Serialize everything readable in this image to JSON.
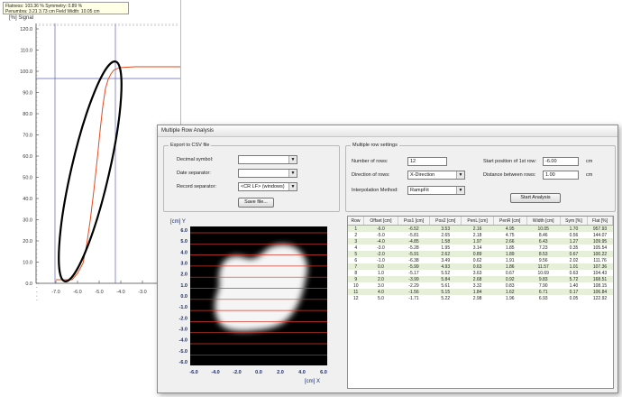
{
  "background_window": {
    "tooltip_line1": "Flatness: 103.36 %  Symmetry: 0.89 %",
    "tooltip_line2": "Penumbra: 3.21  3.73 cm  Field Width: 10.05 cm",
    "y_label": "[%] Signal",
    "y_ticks": [
      "120.0",
      "110.0",
      "100.0",
      "90.0",
      "80.0",
      "70.0",
      "60.0",
      "50.0",
      "40.0",
      "30.0",
      "20.0",
      "10.0",
      "0.0"
    ],
    "x_ticks": [
      "-7.0",
      "-6.0",
      "-5.0",
      "-4.0",
      "-3.0",
      "-2."
    ],
    "colors": {
      "curve": "#e34a1e",
      "highlight": "#000000",
      "grid": "#5c63b8"
    }
  },
  "dialog": {
    "title": "Multiple Row Analysis",
    "export": {
      "group_title": "Export to CSV file",
      "decimal_label": "Decimal symbol:",
      "decimal_value": "",
      "date_label": "Date separator:",
      "date_value": "",
      "record_label": "Record separator:",
      "record_value": "<CR LF> (windows)",
      "save_button": "Save file..."
    },
    "settings": {
      "group_title": "Multiple row settings",
      "rows_label": "Number of rows:",
      "rows_value": "12",
      "direction_label": "Direction of rows:",
      "direction_value": "X-Direction",
      "interp_label": "Interpolation Method:",
      "interp_value": "RampFit",
      "start_label": "Start position of 1st row:",
      "start_value": "-6.00",
      "start_unit": "cm",
      "distance_label": "Distance between rows:",
      "distance_value": "1.00",
      "distance_unit": "cm",
      "start_button": "Start Analysis"
    },
    "field_plot": {
      "y_label": "[cm]  Y",
      "x_label": "[cm]  X",
      "y_ticks": [
        "6.0",
        "5.0",
        "4.0",
        "3.0",
        "2.0",
        "1.0",
        "0.0",
        "-1.0",
        "-2.0",
        "-3.0",
        "-4.0",
        "-5.0",
        "-6.0"
      ],
      "x_ticks": [
        "-6.0",
        "-4.0",
        "-2.0",
        "0.0",
        "2.0",
        "4.0",
        "6.0"
      ]
    },
    "table": {
      "headers": [
        "Row",
        "Offset [cm]",
        "Pos1 [cm]",
        "Pos2 [cm]",
        "PenL [cm]",
        "PenR [cm]",
        "Width [cm]",
        "Sym [%]",
        "Flat [%]"
      ],
      "rows": [
        [
          "1",
          "-6.0",
          "-6.52",
          "3.53",
          "2.16",
          "4.95",
          "10.05",
          "1.70",
          "957.93"
        ],
        [
          "2",
          "-5.0",
          "-5.81",
          "2.65",
          "2.18",
          "4.75",
          "8.46",
          "0.56",
          "144.07"
        ],
        [
          "3",
          "-4.0",
          "-4.85",
          "1.58",
          "1.97",
          "2.66",
          "6.43",
          "1.27",
          "109.95"
        ],
        [
          "4",
          "-3.0",
          "-5.28",
          "1.95",
          "3.14",
          "1.85",
          "7.23",
          "0.35",
          "105.54"
        ],
        [
          "5",
          "-2.0",
          "-5.91",
          "2.62",
          "0.89",
          "1.89",
          "8.53",
          "0.67",
          "100.22"
        ],
        [
          "6",
          "-1.0",
          "-6.38",
          "3.49",
          "0.62",
          "1.91",
          "9.56",
          "2.02",
          "111.76"
        ],
        [
          "7",
          "0.0",
          "-5.99",
          "4.93",
          "0.63",
          "1.86",
          "11.57",
          "1.01",
          "107.36"
        ],
        [
          "8",
          "1.0",
          "-5.17",
          "5.52",
          "3.63",
          "0.67",
          "10.69",
          "0.63",
          "104.43"
        ],
        [
          "9",
          "2.0",
          "-3.99",
          "5.84",
          "2.68",
          "0.92",
          "9.83",
          "5.72",
          "168.51"
        ],
        [
          "10",
          "3.0",
          "-2.29",
          "5.61",
          "3.32",
          "0.83",
          "7.90",
          "1.40",
          "108.15"
        ],
        [
          "11",
          "4.0",
          "-1.56",
          "5.15",
          "1.84",
          "1.62",
          "6.71",
          "0.17",
          "106.84"
        ],
        [
          "12",
          "5.0",
          "-1.71",
          "5.22",
          "2.98",
          "1.96",
          "6.93",
          "0.05",
          "122.92"
        ]
      ]
    }
  }
}
